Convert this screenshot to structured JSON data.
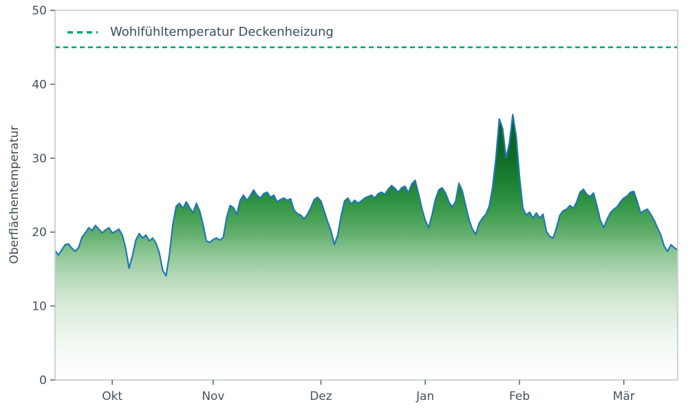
{
  "chart_data": {
    "type": "area",
    "title": "",
    "ylabel": "Oberflächentemperatur",
    "xlabel": "",
    "ylim": [
      0,
      50
    ],
    "yticks": [
      0,
      10,
      20,
      30,
      40,
      50
    ],
    "x_range_days": [
      0,
      185
    ],
    "xticks": [
      {
        "day": 17,
        "label": "Okt"
      },
      {
        "day": 47,
        "label": "Nov"
      },
      {
        "day": 79,
        "label": "Dez"
      },
      {
        "day": 110,
        "label": "Jan"
      },
      {
        "day": 138,
        "label": "Feb"
      },
      {
        "day": 169,
        "label": "Mär"
      }
    ],
    "grid": false,
    "legend_position": "upper left",
    "threshold": {
      "label": "Wohlfühltemperatur Deckenheizung",
      "value": 45,
      "color": "#00a878",
      "linestyle": "dashed"
    },
    "series": [
      {
        "name": "Oberflächentemperatur",
        "color": "#1f77b4",
        "values": [
          17.5,
          16.9,
          17.6,
          18.3,
          18.4,
          17.8,
          17.4,
          17.9,
          19.3,
          19.9,
          20.6,
          20.2,
          20.9,
          20.4,
          19.9,
          20.3,
          20.6,
          19.9,
          20.1,
          20.4,
          19.6,
          17.8,
          15.1,
          16.8,
          18.9,
          19.8,
          19.2,
          19.6,
          18.8,
          19.2,
          18.5,
          17.2,
          14.8,
          14.1,
          17.0,
          21.0,
          23.5,
          23.9,
          23.2,
          24.1,
          23.3,
          22.6,
          23.9,
          22.8,
          21.0,
          18.8,
          18.6,
          19.0,
          19.2,
          18.9,
          19.3,
          22.0,
          23.6,
          23.3,
          22.4,
          24.3,
          25.0,
          24.3,
          24.9,
          25.7,
          25.0,
          24.6,
          25.2,
          25.4,
          24.7,
          25.0,
          24.1,
          24.4,
          24.6,
          24.3,
          24.5,
          23.0,
          22.5,
          22.3,
          21.8,
          22.4,
          23.3,
          24.4,
          24.7,
          24.2,
          22.8,
          21.4,
          20.2,
          18.3,
          19.6,
          22.2,
          24.2,
          24.6,
          23.8,
          24.3,
          23.9,
          24.2,
          24.6,
          24.8,
          25.0,
          24.6,
          25.2,
          25.4,
          25.1,
          25.8,
          26.3,
          25.9,
          25.4,
          26.0,
          26.2,
          25.3,
          26.5,
          27.0,
          25.2,
          23.2,
          21.6,
          20.6,
          22.3,
          24.4,
          25.7,
          26.0,
          25.3,
          24.1,
          23.4,
          24.1,
          26.6,
          25.6,
          23.6,
          21.7,
          20.4,
          19.7,
          21.2,
          21.9,
          22.4,
          23.5,
          26.0,
          30.0,
          35.3,
          34.0,
          30.0,
          32.0,
          35.9,
          33.0,
          27.5,
          23.2,
          22.3,
          22.7,
          21.9,
          22.6,
          21.9,
          22.4,
          20.1,
          19.4,
          19.2,
          20.6,
          22.3,
          22.9,
          23.1,
          23.6,
          23.2,
          24.1,
          25.4,
          25.8,
          25.1,
          24.8,
          25.3,
          23.6,
          21.6,
          20.6,
          21.7,
          22.6,
          23.1,
          23.4,
          24.1,
          24.6,
          24.9,
          25.4,
          25.5,
          24.1,
          22.6,
          22.9,
          23.1,
          22.4,
          21.6,
          20.6,
          19.6,
          18.1,
          17.4,
          18.3,
          17.9,
          17.6
        ]
      }
    ],
    "fill_gradient": [
      {
        "at": 0.0,
        "color": "#ffffff"
      },
      {
        "at": 0.1,
        "color": "#f1f8f1"
      },
      {
        "at": 0.2,
        "color": "#daecda"
      },
      {
        "at": 0.28,
        "color": "#b5d9b8"
      },
      {
        "at": 0.34,
        "color": "#8ec795"
      },
      {
        "at": 0.4,
        "color": "#60ad6b"
      },
      {
        "at": 0.46,
        "color": "#3a9a4a"
      },
      {
        "at": 0.52,
        "color": "#218536"
      },
      {
        "at": 0.6,
        "color": "#0f6b27"
      },
      {
        "at": 0.72,
        "color": "#085c20"
      },
      {
        "at": 1.0,
        "color": "#07551e"
      }
    ],
    "axis_colors": {
      "spine": "#c6cfd5",
      "tick_mark": "#5d6b75",
      "tick_label": "#44525c"
    }
  }
}
